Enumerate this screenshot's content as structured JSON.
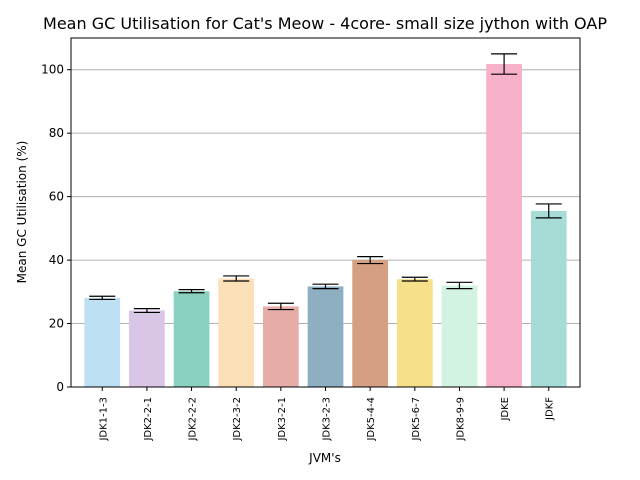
{
  "chart_data": {
    "type": "bar",
    "title": "Mean GC Utilisation for Cat's Meow - 4core- small size jython with OAP",
    "xlabel": "JVM's",
    "ylabel": "Mean GC Utilisation (%)",
    "ylim": [
      0,
      110
    ],
    "yticks": [
      0,
      20,
      40,
      60,
      80,
      100
    ],
    "grid": "horizontal",
    "categories": [
      "JDK1-1-3",
      "JDK2-2-1",
      "JDK2-2-2",
      "JDK2-3-2",
      "JDK3-2-1",
      "JDK3-2-3",
      "JDK5-4-4",
      "JDK5-6-7",
      "JDK8-9-9",
      "JDKE",
      "JDKF"
    ],
    "values": [
      28.1,
      24.1,
      30.2,
      34.2,
      25.4,
      31.7,
      40.0,
      34.0,
      32.0,
      101.8,
      55.5
    ],
    "errors": [
      0.5,
      0.6,
      0.5,
      0.8,
      1.0,
      0.7,
      1.1,
      0.6,
      1.0,
      3.2,
      2.2
    ],
    "colors": [
      "#bde0f2",
      "#d9c5e6",
      "#8ad1c1",
      "#fbe0b8",
      "#e6ada6",
      "#8eaec1",
      "#d4a081",
      "#f6e08a",
      "#d2f3e2",
      "#f7b0c9",
      "#a6dbd6"
    ]
  }
}
